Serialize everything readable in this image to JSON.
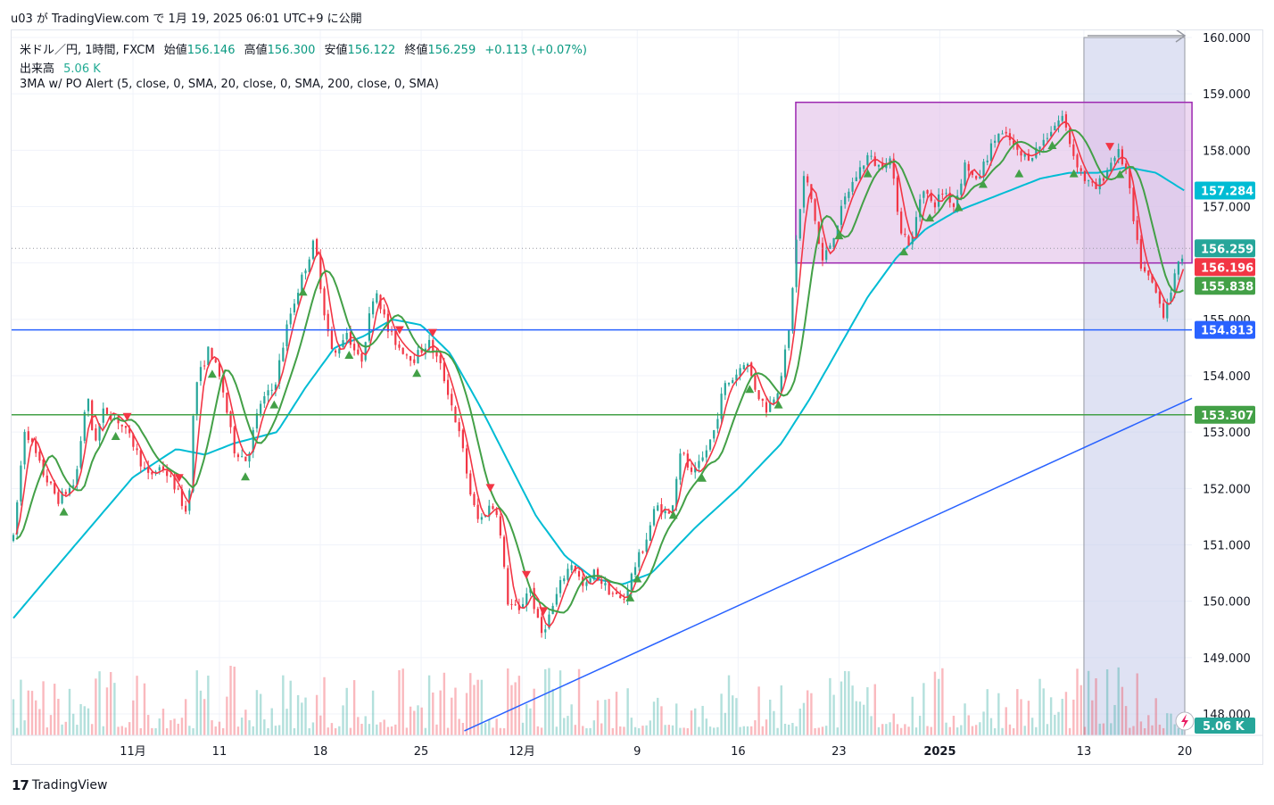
{
  "header": {
    "publish_line": "u03 が TradingView.com で 1月 19, 2025 06:01 UTC+9 に公開"
  },
  "legend": {
    "symbol": "米ドル／円, 1時間, FXCM",
    "open_label": "始値",
    "open": "156.146",
    "high_label": "高値",
    "high": "156.300",
    "low_label": "安値",
    "low": "156.122",
    "close_label": "終値",
    "close": "156.259",
    "change": "+0.113 (+0.07%)",
    "volume_label": "出来高",
    "volume": "5.06 K",
    "indicator": "3MA w/ PO Alert (5, close, 0, SMA, 20, close, 0, SMA, 200, close, 0, SMA)"
  },
  "footer": {
    "brand": "TradingView"
  },
  "colors": {
    "up": "#26a69a",
    "down": "#f23645",
    "ma5": "#f23645",
    "ma20": "#43a047",
    "ma200": "#00bcd4",
    "h_blue": "#2962ff",
    "h_green": "#43a047",
    "rect_fill": "#e1bee7",
    "rect_border": "#9c27b0",
    "range_fill": "#c5cae9"
  },
  "chart_data": {
    "type": "line",
    "ylim": [
      148.0,
      160.0
    ],
    "y_ticks": [
      "160.000",
      "159.000",
      "158.000",
      "157.000",
      "156.000",
      "155.000",
      "154.000",
      "153.000",
      "152.000",
      "151.000",
      "150.000",
      "149.000",
      "148.000"
    ],
    "x_ticks": [
      "11月",
      "11",
      "18",
      "25",
      "12月",
      "9",
      "16",
      "23",
      "2025",
      "13",
      "20"
    ],
    "x_tick_days": [
      4,
      10,
      17,
      24,
      31,
      39,
      46,
      53,
      60,
      70,
      77
    ],
    "x_range_days": [
      -4.3,
      77
    ],
    "price_key": [
      {
        "day": -4.3,
        "v": 151.1
      },
      {
        "day": -3.5,
        "v": 153.1
      },
      {
        "day": -2.3,
        "v": 152.3
      },
      {
        "day": -1.2,
        "v": 151.8
      },
      {
        "day": 0,
        "v": 152.1
      },
      {
        "day": 0.8,
        "v": 153.7
      },
      {
        "day": 1.3,
        "v": 152.8
      },
      {
        "day": 2.0,
        "v": 153.4
      },
      {
        "day": 3.0,
        "v": 153.2
      },
      {
        "day": 4.0,
        "v": 152.8
      },
      {
        "day": 5.0,
        "v": 152.2
      },
      {
        "day": 6.0,
        "v": 152.4
      },
      {
        "day": 7.0,
        "v": 152.0
      },
      {
        "day": 7.8,
        "v": 151.5
      },
      {
        "day": 8.3,
        "v": 153.8
      },
      {
        "day": 9.3,
        "v": 154.5
      },
      {
        "day": 10.2,
        "v": 153.8
      },
      {
        "day": 11.0,
        "v": 152.7
      },
      {
        "day": 11.9,
        "v": 152.5
      },
      {
        "day": 12.8,
        "v": 153.5
      },
      {
        "day": 13.8,
        "v": 153.8
      },
      {
        "day": 14.8,
        "v": 155.0
      },
      {
        "day": 15.8,
        "v": 155.8
      },
      {
        "day": 16.6,
        "v": 156.4
      },
      {
        "day": 17.3,
        "v": 155.1
      },
      {
        "day": 17.9,
        "v": 154.3
      },
      {
        "day": 18.8,
        "v": 154.8
      },
      {
        "day": 19.8,
        "v": 154.2
      },
      {
        "day": 20.8,
        "v": 155.6
      },
      {
        "day": 21.7,
        "v": 154.8
      },
      {
        "day": 22.5,
        "v": 154.5
      },
      {
        "day": 23.5,
        "v": 154.3
      },
      {
        "day": 24.5,
        "v": 154.6
      },
      {
        "day": 25.3,
        "v": 154.2
      },
      {
        "day": 26.0,
        "v": 153.6
      },
      {
        "day": 26.8,
        "v": 152.8
      },
      {
        "day": 27.5,
        "v": 151.8
      },
      {
        "day": 28.0,
        "v": 151.4
      },
      {
        "day": 28.8,
        "v": 151.7
      },
      {
        "day": 29.3,
        "v": 151.6
      },
      {
        "day": 30.0,
        "v": 150.0
      },
      {
        "day": 30.8,
        "v": 149.8
      },
      {
        "day": 31.5,
        "v": 150.3
      },
      {
        "day": 32.3,
        "v": 149.4
      },
      {
        "day": 33.0,
        "v": 149.8
      },
      {
        "day": 33.8,
        "v": 150.4
      },
      {
        "day": 34.5,
        "v": 150.7
      },
      {
        "day": 35.3,
        "v": 150.2
      },
      {
        "day": 36.0,
        "v": 150.5
      },
      {
        "day": 37.0,
        "v": 150.2
      },
      {
        "day": 38.0,
        "v": 150.0
      },
      {
        "day": 38.8,
        "v": 150.6
      },
      {
        "day": 39.5,
        "v": 151.0
      },
      {
        "day": 40.3,
        "v": 151.7
      },
      {
        "day": 41.3,
        "v": 151.5
      },
      {
        "day": 42.0,
        "v": 152.7
      },
      {
        "day": 42.8,
        "v": 152.2
      },
      {
        "day": 43.5,
        "v": 152.5
      },
      {
        "day": 44.3,
        "v": 153.0
      },
      {
        "day": 45.0,
        "v": 153.8
      },
      {
        "day": 45.8,
        "v": 154.0
      },
      {
        "day": 46.5,
        "v": 154.3
      },
      {
        "day": 47.3,
        "v": 153.7
      },
      {
        "day": 48.0,
        "v": 153.4
      },
      {
        "day": 48.8,
        "v": 153.8
      },
      {
        "day": 49.5,
        "v": 154.7
      },
      {
        "day": 50.0,
        "v": 156.3
      },
      {
        "day": 50.6,
        "v": 157.6
      },
      {
        "day": 51.2,
        "v": 157.0
      },
      {
        "day": 51.8,
        "v": 156.0
      },
      {
        "day": 52.5,
        "v": 156.4
      },
      {
        "day": 53.5,
        "v": 157.2
      },
      {
        "day": 54.3,
        "v": 157.6
      },
      {
        "day": 55.0,
        "v": 157.9
      },
      {
        "day": 55.8,
        "v": 157.7
      },
      {
        "day": 56.5,
        "v": 157.9
      },
      {
        "day": 57.3,
        "v": 156.6
      },
      {
        "day": 58.0,
        "v": 156.3
      },
      {
        "day": 58.8,
        "v": 157.4
      },
      {
        "day": 59.5,
        "v": 157.0
      },
      {
        "day": 60.3,
        "v": 157.3
      },
      {
        "day": 61.0,
        "v": 157.0
      },
      {
        "day": 61.8,
        "v": 157.8
      },
      {
        "day": 62.5,
        "v": 157.4
      },
      {
        "day": 63.3,
        "v": 157.9
      },
      {
        "day": 64.0,
        "v": 158.3
      },
      {
        "day": 64.8,
        "v": 158.2
      },
      {
        "day": 65.5,
        "v": 157.9
      },
      {
        "day": 66.3,
        "v": 157.9
      },
      {
        "day": 67.0,
        "v": 158.1
      },
      {
        "day": 67.8,
        "v": 158.4
      },
      {
        "day": 68.5,
        "v": 158.6
      },
      {
        "day": 69.3,
        "v": 157.9
      },
      {
        "day": 70.0,
        "v": 157.5
      },
      {
        "day": 70.8,
        "v": 157.3
      },
      {
        "day": 71.5,
        "v": 157.6
      },
      {
        "day": 72.3,
        "v": 158.0
      },
      {
        "day": 73.0,
        "v": 157.6
      },
      {
        "day": 73.5,
        "v": 156.6
      },
      {
        "day": 74.0,
        "v": 155.9
      },
      {
        "day": 74.8,
        "v": 155.6
      },
      {
        "day": 75.5,
        "v": 155.1
      },
      {
        "day": 76.0,
        "v": 155.5
      },
      {
        "day": 76.5,
        "v": 155.9
      },
      {
        "day": 77.0,
        "v": 156.26
      }
    ],
    "ma200_key": [
      {
        "day": -4.3,
        "v": 149.7
      },
      {
        "day": -2,
        "v": 150.4
      },
      {
        "day": 1,
        "v": 151.3
      },
      {
        "day": 4,
        "v": 152.2
      },
      {
        "day": 7,
        "v": 152.7
      },
      {
        "day": 9,
        "v": 152.6
      },
      {
        "day": 11,
        "v": 152.8
      },
      {
        "day": 14,
        "v": 153.0
      },
      {
        "day": 16,
        "v": 153.8
      },
      {
        "day": 18,
        "v": 154.5
      },
      {
        "day": 20,
        "v": 154.7
      },
      {
        "day": 22,
        "v": 155.0
      },
      {
        "day": 24,
        "v": 154.9
      },
      {
        "day": 26,
        "v": 154.4
      },
      {
        "day": 28,
        "v": 153.5
      },
      {
        "day": 30,
        "v": 152.5
      },
      {
        "day": 32,
        "v": 151.5
      },
      {
        "day": 34,
        "v": 150.8
      },
      {
        "day": 36,
        "v": 150.4
      },
      {
        "day": 38,
        "v": 150.3
      },
      {
        "day": 40,
        "v": 150.5
      },
      {
        "day": 43,
        "v": 151.3
      },
      {
        "day": 46,
        "v": 152.0
      },
      {
        "day": 49,
        "v": 152.8
      },
      {
        "day": 51,
        "v": 153.6
      },
      {
        "day": 53,
        "v": 154.5
      },
      {
        "day": 55,
        "v": 155.4
      },
      {
        "day": 57,
        "v": 156.1
      },
      {
        "day": 59,
        "v": 156.6
      },
      {
        "day": 61,
        "v": 156.9
      },
      {
        "day": 63,
        "v": 157.1
      },
      {
        "day": 65,
        "v": 157.3
      },
      {
        "day": 67,
        "v": 157.5
      },
      {
        "day": 69,
        "v": 157.6
      },
      {
        "day": 71,
        "v": 157.6
      },
      {
        "day": 73,
        "v": 157.7
      },
      {
        "day": 75,
        "v": 157.6
      },
      {
        "day": 77,
        "v": 157.28
      }
    ],
    "hlines": [
      {
        "value": 154.813,
        "color": "#2962ff",
        "label": "154.813"
      },
      {
        "value": 153.307,
        "color": "#43a047",
        "label": "153.307"
      }
    ],
    "trendline": {
      "from": {
        "day": 27.0,
        "v": 147.7
      },
      "to": {
        "day": 77.5,
        "v": 153.6
      }
    },
    "box": {
      "from_day": 50.0,
      "to_day": 77.5,
      "top": 158.85,
      "bottom": 156.0
    },
    "range": {
      "from_day": 70.0,
      "to_day": 77.0,
      "top": 160.0,
      "bottom": 148.0
    },
    "price_labels": [
      {
        "value": 157.284,
        "label": "157.284",
        "bg": "#00bcd4"
      },
      {
        "value": 156.259,
        "label": "156.259",
        "bg": "#26a69a"
      },
      {
        "value": 156.196,
        "label": "156.196",
        "bg": "#f23645",
        "offset": 1
      },
      {
        "value": 155.838,
        "label": "155.838",
        "bg": "#43a047",
        "offset": 1
      },
      {
        "value": 154.813,
        "label": "154.813",
        "bg": "#2962ff"
      },
      {
        "value": 153.307,
        "label": "153.307",
        "bg": "#43a047"
      }
    ],
    "volume_label": "5.06 K",
    "buy_signals_days": [
      -0.8,
      2.8,
      9.5,
      11.8,
      13.8,
      15.8,
      19.0,
      23.7,
      38.5,
      39.0,
      41.5,
      43.5,
      46.8,
      48.8,
      53.0,
      55.0,
      57.5,
      59.3,
      61.3,
      63.0,
      65.5,
      67.8,
      69.3,
      72.5
    ],
    "sell_signals_days": [
      3.6,
      7.2,
      22.5,
      24.8,
      28.8,
      31.3,
      32.5,
      71.8
    ]
  }
}
